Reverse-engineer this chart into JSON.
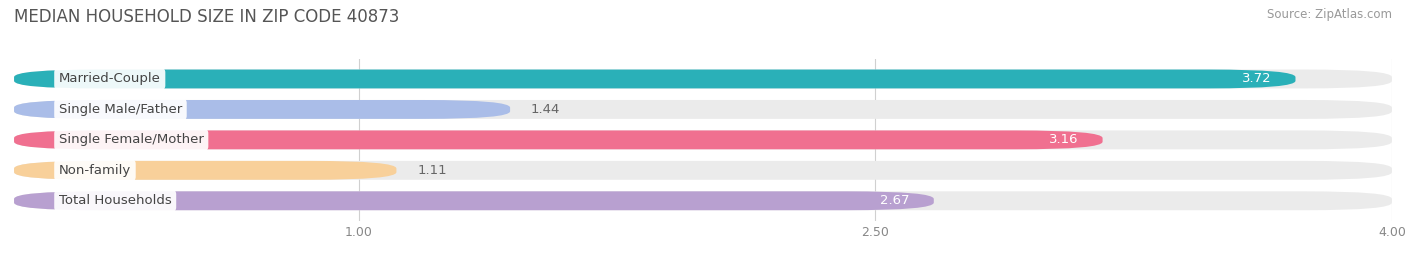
{
  "title": "MEDIAN HOUSEHOLD SIZE IN ZIP CODE 40873",
  "source": "Source: ZipAtlas.com",
  "categories": [
    "Married-Couple",
    "Single Male/Father",
    "Single Female/Mother",
    "Non-family",
    "Total Households"
  ],
  "values": [
    3.72,
    1.44,
    3.16,
    1.11,
    2.67
  ],
  "bar_colors": [
    "#2ab0b8",
    "#aabde8",
    "#f07090",
    "#f8d09a",
    "#b8a0d0"
  ],
  "track_color": "#ebebeb",
  "xlim_data": [
    0,
    4.0
  ],
  "xticks": [
    1.0,
    2.5,
    4.0
  ],
  "bar_height": 0.62,
  "value_inside_threshold": 2.5,
  "value_fontsize": 9.5,
  "label_fontsize": 9.5,
  "title_fontsize": 12,
  "source_fontsize": 8.5,
  "background_color": "#ffffff",
  "title_color": "#555555",
  "source_color": "#999999",
  "label_color": "#444444",
  "tick_color": "#888888"
}
